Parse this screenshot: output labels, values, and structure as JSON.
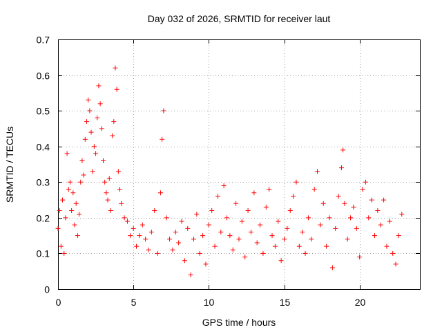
{
  "chart_data": {
    "type": "scatter",
    "title": "Day 032 of 2026, SRMTID for receiver laut",
    "xlabel": "GPS time / hours",
    "ylabel": "SRMTID / TECUs",
    "xlim": [
      0,
      24
    ],
    "ylim": [
      0,
      0.7
    ],
    "xticks": [
      0,
      5,
      10,
      15,
      20
    ],
    "xtick_labels": [
      "0",
      "5",
      "10",
      "15",
      "20"
    ],
    "yticks": [
      0,
      0.1,
      0.2,
      0.3,
      0.4,
      0.5,
      0.6,
      0.7
    ],
    "ytick_labels": [
      "0",
      "0.1",
      "0.2",
      "0.3",
      "0.4",
      "0.5",
      "0.6",
      "0.7"
    ],
    "grid": true,
    "marker": "+",
    "series": [
      {
        "name": "SRMTID",
        "color": "#ff0000",
        "points": [
          [
            0.0,
            0.17
          ],
          [
            0.1,
            0.22
          ],
          [
            0.2,
            0.12
          ],
          [
            0.3,
            0.25
          ],
          [
            0.4,
            0.1
          ],
          [
            0.5,
            0.2
          ],
          [
            0.6,
            0.38
          ],
          [
            0.7,
            0.28
          ],
          [
            0.8,
            0.3
          ],
          [
            0.9,
            0.22
          ],
          [
            1.0,
            0.27
          ],
          [
            1.1,
            0.18
          ],
          [
            1.2,
            0.24
          ],
          [
            1.3,
            0.15
          ],
          [
            1.4,
            0.21
          ],
          [
            1.5,
            0.3
          ],
          [
            1.6,
            0.36
          ],
          [
            1.7,
            0.32
          ],
          [
            1.8,
            0.42
          ],
          [
            1.9,
            0.47
          ],
          [
            2.0,
            0.53
          ],
          [
            2.1,
            0.5
          ],
          [
            2.2,
            0.44
          ],
          [
            2.3,
            0.33
          ],
          [
            2.4,
            0.4
          ],
          [
            2.5,
            0.38
          ],
          [
            2.6,
            0.48
          ],
          [
            2.7,
            0.57
          ],
          [
            2.8,
            0.52
          ],
          [
            2.9,
            0.45
          ],
          [
            3.0,
            0.36
          ],
          [
            3.1,
            0.3
          ],
          [
            3.2,
            0.27
          ],
          [
            3.3,
            0.25
          ],
          [
            3.4,
            0.31
          ],
          [
            3.5,
            0.22
          ],
          [
            3.6,
            0.43
          ],
          [
            3.7,
            0.47
          ],
          [
            3.8,
            0.62
          ],
          [
            3.9,
            0.56
          ],
          [
            4.0,
            0.33
          ],
          [
            4.1,
            0.28
          ],
          [
            4.2,
            0.24
          ],
          [
            4.4,
            0.2
          ],
          [
            4.6,
            0.19
          ],
          [
            4.8,
            0.15
          ],
          [
            5.0,
            0.17
          ],
          [
            5.2,
            0.12
          ],
          [
            5.4,
            0.15
          ],
          [
            5.6,
            0.18
          ],
          [
            5.8,
            0.14
          ],
          [
            6.0,
            0.11
          ],
          [
            6.2,
            0.16
          ],
          [
            6.4,
            0.22
          ],
          [
            6.6,
            0.1
          ],
          [
            6.8,
            0.27
          ],
          [
            6.9,
            0.42
          ],
          [
            7.0,
            0.5
          ],
          [
            7.2,
            0.2
          ],
          [
            7.4,
            0.14
          ],
          [
            7.6,
            0.11
          ],
          [
            7.8,
            0.16
          ],
          [
            8.0,
            0.13
          ],
          [
            8.2,
            0.19
          ],
          [
            8.4,
            0.08
          ],
          [
            8.6,
            0.17
          ],
          [
            8.8,
            0.04
          ],
          [
            9.0,
            0.14
          ],
          [
            9.2,
            0.21
          ],
          [
            9.4,
            0.1
          ],
          [
            9.6,
            0.15
          ],
          [
            9.8,
            0.07
          ],
          [
            10.0,
            0.18
          ],
          [
            10.2,
            0.22
          ],
          [
            10.4,
            0.12
          ],
          [
            10.6,
            0.26
          ],
          [
            10.8,
            0.16
          ],
          [
            11.0,
            0.29
          ],
          [
            11.2,
            0.2
          ],
          [
            11.4,
            0.15
          ],
          [
            11.6,
            0.11
          ],
          [
            11.8,
            0.24
          ],
          [
            12.0,
            0.14
          ],
          [
            12.2,
            0.19
          ],
          [
            12.4,
            0.09
          ],
          [
            12.6,
            0.22
          ],
          [
            12.8,
            0.16
          ],
          [
            13.0,
            0.27
          ],
          [
            13.2,
            0.13
          ],
          [
            13.4,
            0.18
          ],
          [
            13.6,
            0.1
          ],
          [
            13.8,
            0.23
          ],
          [
            14.0,
            0.28
          ],
          [
            14.2,
            0.15
          ],
          [
            14.4,
            0.12
          ],
          [
            14.6,
            0.19
          ],
          [
            14.8,
            0.08
          ],
          [
            15.0,
            0.14
          ],
          [
            15.2,
            0.17
          ],
          [
            15.4,
            0.22
          ],
          [
            15.6,
            0.26
          ],
          [
            15.8,
            0.3
          ],
          [
            16.0,
            0.12
          ],
          [
            16.2,
            0.16
          ],
          [
            16.4,
            0.1
          ],
          [
            16.6,
            0.2
          ],
          [
            16.8,
            0.14
          ],
          [
            17.0,
            0.28
          ],
          [
            17.2,
            0.33
          ],
          [
            17.4,
            0.18
          ],
          [
            17.6,
            0.24
          ],
          [
            17.8,
            0.12
          ],
          [
            18.0,
            0.2
          ],
          [
            18.2,
            0.06
          ],
          [
            18.4,
            0.17
          ],
          [
            18.6,
            0.26
          ],
          [
            18.8,
            0.34
          ],
          [
            18.9,
            0.39
          ],
          [
            19.0,
            0.24
          ],
          [
            19.2,
            0.14
          ],
          [
            19.4,
            0.2
          ],
          [
            19.6,
            0.23
          ],
          [
            19.8,
            0.17
          ],
          [
            20.0,
            0.09
          ],
          [
            20.2,
            0.28
          ],
          [
            20.4,
            0.3
          ],
          [
            20.6,
            0.2
          ],
          [
            20.8,
            0.25
          ],
          [
            21.0,
            0.15
          ],
          [
            21.2,
            0.22
          ],
          [
            21.4,
            0.18
          ],
          [
            21.6,
            0.25
          ],
          [
            21.8,
            0.12
          ],
          [
            22.0,
            0.19
          ],
          [
            22.2,
            0.1
          ],
          [
            22.4,
            0.07
          ],
          [
            22.6,
            0.15
          ],
          [
            22.8,
            0.21
          ]
        ]
      }
    ]
  }
}
